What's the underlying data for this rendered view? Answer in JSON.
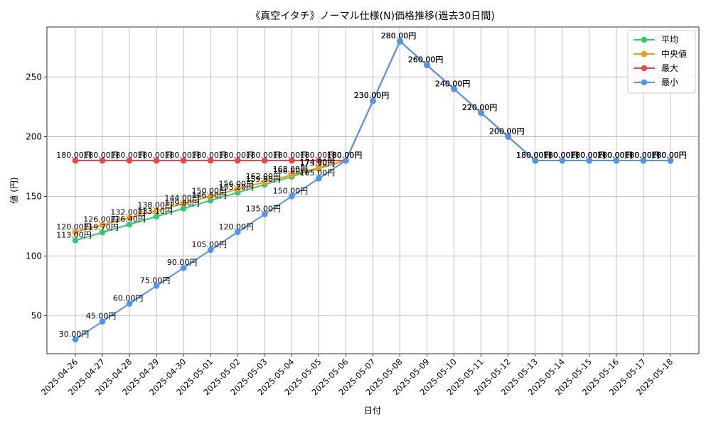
{
  "chart_data": {
    "type": "line",
    "title": "《真空イタチ》ノーマル仕様(N)価格推移(過去30日間)",
    "xlabel": "日付",
    "ylabel": "値 (円)",
    "ylim": [
      18,
      292
    ],
    "yticks": [
      50,
      100,
      150,
      200,
      250
    ],
    "grid": true,
    "legend_position": "top-right",
    "label_suffix": "円",
    "categories": [
      "2025-04-26",
      "2025-04-27",
      "2025-04-28",
      "2025-04-29",
      "2025-04-30",
      "2025-05-01",
      "2025-05-02",
      "2025-05-03",
      "2025-05-04",
      "2025-05-05",
      "2025-05-06",
      "2025-05-07",
      "2025-05-08",
      "2025-05-09",
      "2025-05-10",
      "2025-05-11",
      "2025-05-12",
      "2025-05-13",
      "2025-05-14",
      "2025-05-15",
      "2025-05-16",
      "2025-05-17",
      "2025-05-18"
    ],
    "series": [
      {
        "name": "平均",
        "color": "#2ecc71",
        "values": [
          113.0,
          119.7,
          126.4,
          133.1,
          139.8,
          146.5,
          153.2,
          159.9,
          166.6,
          173.3,
          180.0,
          230.0,
          280.0,
          260.0,
          240.0,
          220.0,
          200.0,
          180.0,
          180.0,
          180.0,
          180.0,
          180.0,
          180.0
        ]
      },
      {
        "name": "中央値",
        "color": "#f39c12",
        "values": [
          120.0,
          126.0,
          132.0,
          138.0,
          144.0,
          150.0,
          156.0,
          162.0,
          168.0,
          174.0,
          180.0,
          230.0,
          280.0,
          260.0,
          240.0,
          220.0,
          200.0,
          180.0,
          180.0,
          180.0,
          180.0,
          180.0,
          180.0
        ]
      },
      {
        "name": "最大",
        "color": "#ef4444",
        "values": [
          180.0,
          180.0,
          180.0,
          180.0,
          180.0,
          180.0,
          180.0,
          180.0,
          180.0,
          180.0,
          180.0,
          230.0,
          280.0,
          260.0,
          240.0,
          220.0,
          200.0,
          180.0,
          180.0,
          180.0,
          180.0,
          180.0,
          180.0
        ]
      },
      {
        "name": "最小",
        "color": "#4c95f0",
        "values": [
          30.0,
          45.0,
          60.0,
          75.0,
          90.0,
          105.0,
          120.0,
          135.0,
          150.0,
          165.0,
          180.0,
          230.0,
          280.0,
          260.0,
          240.0,
          220.0,
          200.0,
          180.0,
          180.0,
          180.0,
          180.0,
          180.0,
          180.0
        ]
      }
    ]
  }
}
